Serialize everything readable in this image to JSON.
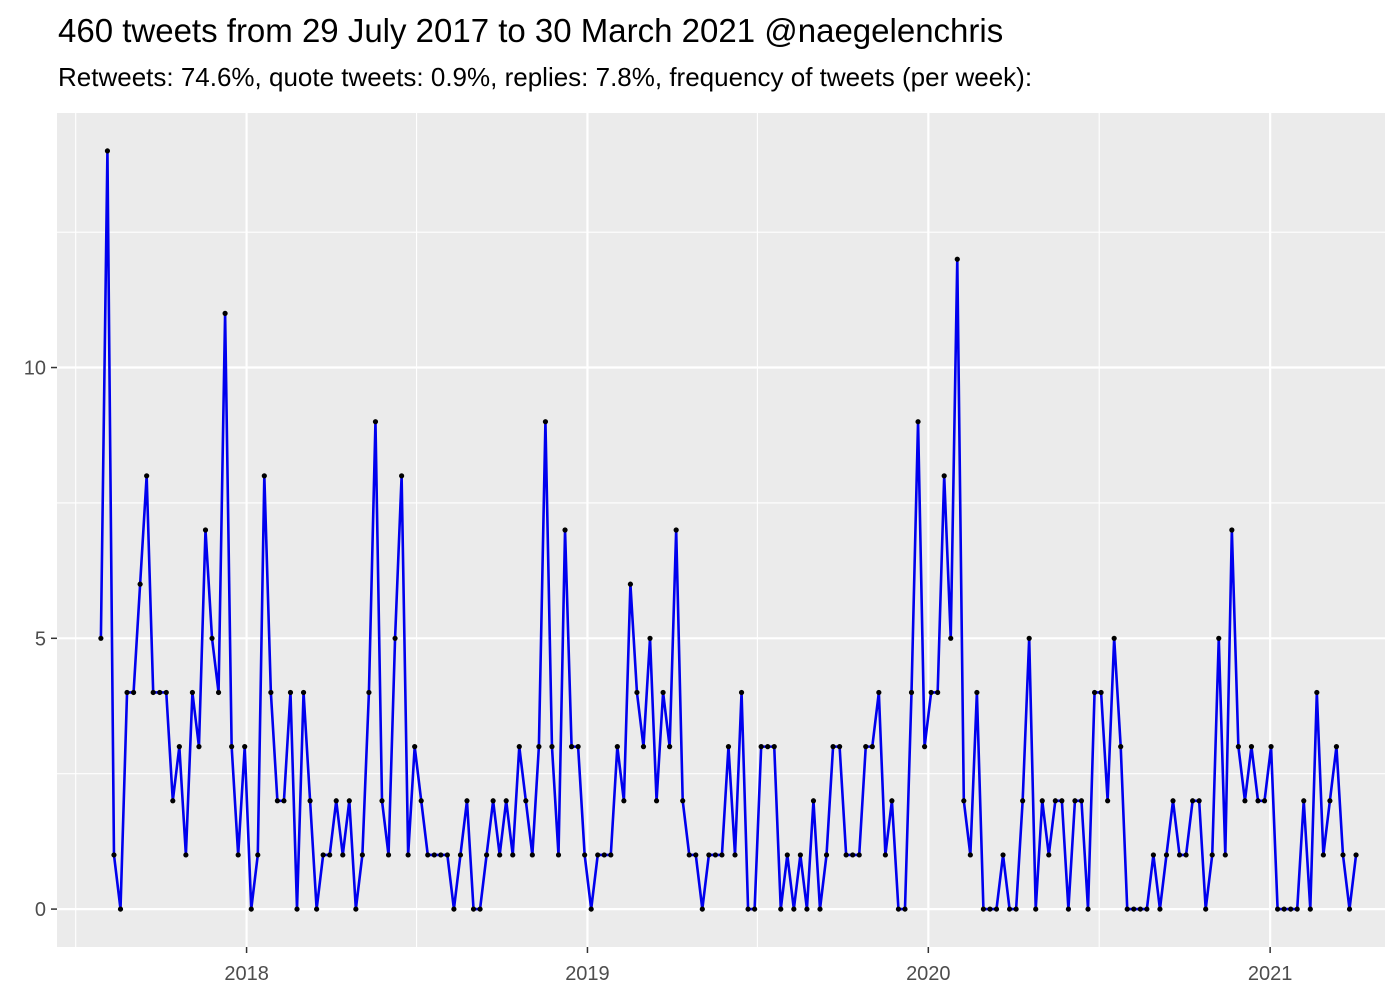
{
  "chart_data": {
    "type": "line",
    "title": "460 tweets from 29 July 2017 to 30 March 2021 @naegelenchris",
    "subtitle": "Retweets: 74.6%, quote tweets: 0.9%, replies: 7.8%, frequency of tweets (per week):",
    "xlabel": "",
    "ylabel": "",
    "x_start": "2017-07-29",
    "x_step_days": 7,
    "x_axis": {
      "ticks": [
        "2018",
        "2019",
        "2020",
        "2021"
      ],
      "range": [
        "2017-06-12",
        "2021-05-04"
      ]
    },
    "y_axis": {
      "ticks": [
        0,
        5,
        10
      ],
      "range": [
        -0.7,
        14.7
      ]
    },
    "grid": true,
    "line_color": "#0000ee",
    "point_color": "#000000",
    "panel_color": "#ebebeb",
    "series": [
      {
        "values": [
          5,
          14,
          1,
          0,
          4,
          4,
          6,
          8,
          4,
          4,
          4,
          2,
          3,
          1,
          4,
          3,
          7,
          5,
          4,
          11,
          3,
          1,
          3,
          0,
          1,
          8,
          4,
          2,
          2,
          4,
          0,
          4,
          2,
          0,
          1,
          1,
          2,
          1,
          2,
          0,
          1,
          4,
          9,
          2,
          1,
          5,
          8,
          1,
          3,
          2,
          1,
          1,
          1,
          1,
          0,
          1,
          2,
          0,
          0,
          1,
          2,
          1,
          2,
          1,
          3,
          2,
          1,
          3,
          9,
          3,
          1,
          7,
          3,
          3,
          1,
          0,
          1,
          1,
          1,
          3,
          2,
          6,
          4,
          3,
          5,
          2,
          4,
          3,
          7,
          2,
          1,
          1,
          0,
          1,
          1,
          1,
          3,
          1,
          4,
          0,
          0,
          3,
          3,
          3,
          0,
          1,
          0,
          1,
          0,
          2,
          0,
          1,
          3,
          3,
          1,
          1,
          1,
          3,
          3,
          4,
          1,
          2,
          0,
          0,
          4,
          9,
          3,
          4,
          4,
          8,
          5,
          12,
          2,
          1,
          4,
          0,
          0,
          0,
          1,
          0,
          0,
          2,
          5,
          0,
          2,
          1,
          2,
          2,
          0,
          2,
          2,
          0,
          4,
          4,
          2,
          5,
          3,
          0,
          0,
          0,
          0,
          1,
          0,
          1,
          2,
          1,
          1,
          2,
          2,
          0,
          1,
          5,
          1,
          7,
          3,
          2,
          3,
          2,
          2,
          3,
          0,
          0,
          0,
          0,
          2,
          0,
          4,
          1,
          2,
          3,
          1,
          0,
          1
        ]
      }
    ]
  }
}
